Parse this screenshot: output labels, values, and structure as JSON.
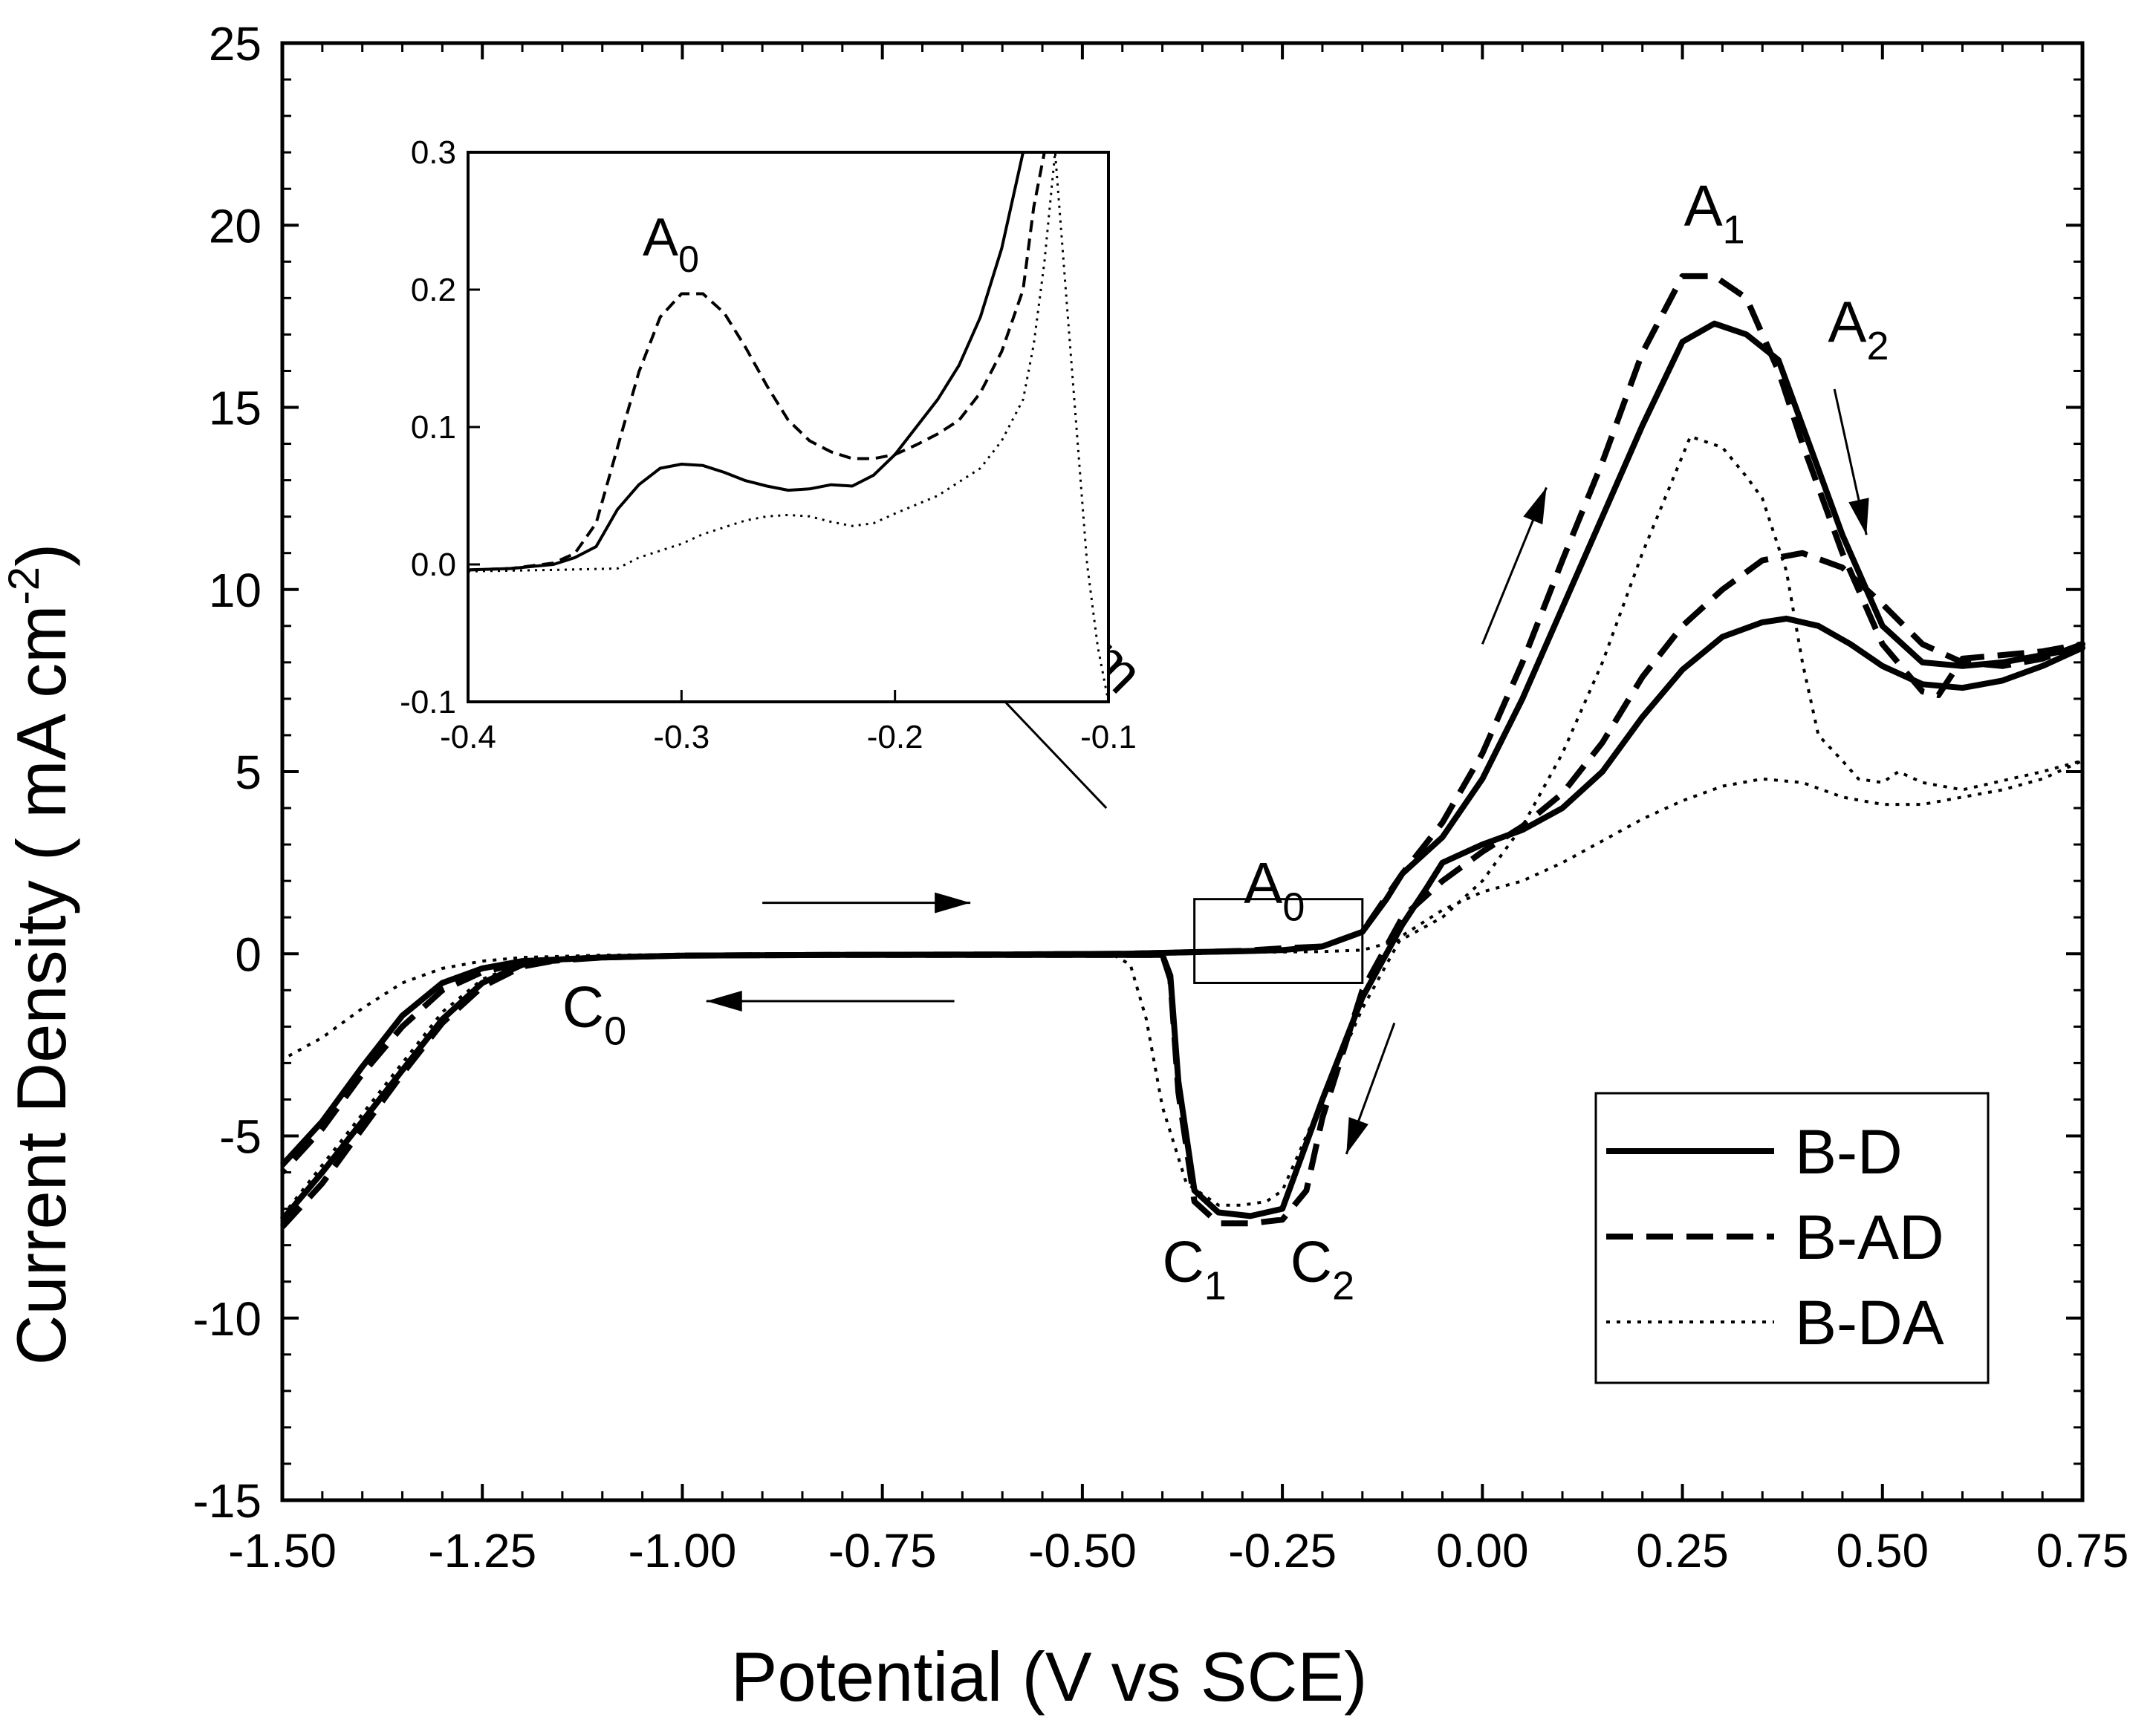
{
  "chart_data": [
    {
      "type": "line",
      "xlabel": "Potential (V vs SCE)",
      "ylabel": "Current Density ( mA cm",
      "ylabel_sup": "-2",
      "ylabel_tail": ")",
      "xlim": [
        -1.5,
        0.75
      ],
      "ylim": [
        -15,
        25
      ],
      "xticks": [
        -1.5,
        -1.25,
        -1.0,
        -0.75,
        -0.5,
        -0.25,
        0.0,
        0.25,
        0.5,
        0.75
      ],
      "xtick_labels": [
        "-1.50",
        "-1.25",
        "-1.00",
        "-0.75",
        "-0.50",
        "-0.25",
        "0.00",
        "0.25",
        "0.50",
        "0.75"
      ],
      "yticks": [
        -15,
        -10,
        -5,
        0,
        5,
        10,
        15,
        20,
        25
      ],
      "ytick_labels": [
        "-15",
        "-10",
        "-5",
        "0",
        "5",
        "10",
        "15",
        "20",
        "25"
      ],
      "legend": {
        "position": "bottom-right",
        "entries": [
          "B-D",
          "B-AD",
          "B-DA"
        ]
      },
      "series": [
        {
          "name": "B-D",
          "style": "solid",
          "x": [
            -1.5,
            -1.45,
            -1.4,
            -1.35,
            -1.3,
            -1.25,
            -1.2,
            -1.15,
            -1.1,
            -1.0,
            -0.8,
            -0.6,
            -0.45,
            -0.43,
            -0.4,
            -0.39,
            -0.38,
            -0.36,
            -0.33,
            -0.29,
            -0.25,
            -0.2,
            -0.15,
            -0.1,
            -0.07,
            -0.05,
            0.0,
            0.05,
            0.1,
            0.15,
            0.2,
            0.25,
            0.3,
            0.35,
            0.38,
            0.42,
            0.46,
            0.5,
            0.55,
            0.6,
            0.65,
            0.7,
            0.75,
            0.7,
            0.65,
            0.6,
            0.55,
            0.5,
            0.45,
            0.4,
            0.37,
            0.33,
            0.29,
            0.25,
            0.2,
            0.15,
            0.1,
            0.05,
            0.0,
            -0.05,
            -0.1,
            -0.12,
            -0.15,
            -0.2,
            -0.25,
            -0.3,
            -0.35,
            -0.45,
            -0.6,
            -0.8,
            -1.0,
            -1.1,
            -1.2,
            -1.25,
            -1.3,
            -1.35,
            -1.4,
            -1.45,
            -1.5
          ],
          "y": [
            -7.3,
            -6.0,
            -4.6,
            -3.2,
            -1.8,
            -0.8,
            -0.3,
            -0.15,
            -0.1,
            -0.05,
            -0.03,
            -0.03,
            -0.03,
            -0.03,
            -0.03,
            -0.6,
            -3.5,
            -6.5,
            -7.1,
            -7.2,
            -7.0,
            -4.0,
            -1.2,
            0.8,
            1.8,
            2.5,
            3.0,
            3.4,
            4.0,
            5.0,
            6.5,
            7.8,
            8.7,
            9.1,
            9.2,
            9.0,
            8.5,
            7.9,
            7.4,
            7.3,
            7.5,
            7.9,
            8.4,
            8.2,
            8.0,
            7.9,
            8.0,
            9.0,
            11.5,
            14.5,
            16.3,
            17.0,
            17.3,
            16.8,
            14.5,
            12.0,
            9.5,
            7.0,
            4.8,
            3.2,
            2.2,
            1.5,
            0.6,
            0.2,
            0.1,
            0.07,
            0.05,
            0.0,
            -0.02,
            -0.03,
            -0.05,
            -0.1,
            -0.2,
            -0.4,
            -0.8,
            -1.7,
            -3.1,
            -4.6,
            -5.8
          ]
        },
        {
          "name": "B-AD",
          "style": "dashed",
          "x": [
            -1.5,
            -1.45,
            -1.4,
            -1.35,
            -1.3,
            -1.25,
            -1.2,
            -1.15,
            -1.1,
            -1.0,
            -0.8,
            -0.6,
            -0.45,
            -0.43,
            -0.4,
            -0.39,
            -0.38,
            -0.36,
            -0.33,
            -0.29,
            -0.25,
            -0.22,
            -0.2,
            -0.15,
            -0.1,
            -0.05,
            0.0,
            0.05,
            0.1,
            0.15,
            0.2,
            0.25,
            0.3,
            0.35,
            0.4,
            0.45,
            0.5,
            0.55,
            0.6,
            0.65,
            0.7,
            0.75,
            0.7,
            0.6,
            0.57,
            0.55,
            0.5,
            0.45,
            0.4,
            0.37,
            0.33,
            0.29,
            0.25,
            0.2,
            0.15,
            0.1,
            0.05,
            0.0,
            -0.05,
            -0.1,
            -0.15,
            -0.2,
            -0.25,
            -0.3,
            -0.35,
            -0.45,
            -0.6,
            -0.8,
            -1.0,
            -1.1,
            -1.2,
            -1.25,
            -1.3,
            -1.35,
            -1.4,
            -1.45,
            -1.5
          ],
          "y": [
            -7.5,
            -6.3,
            -4.8,
            -3.3,
            -1.9,
            -0.9,
            -0.35,
            -0.15,
            -0.1,
            -0.05,
            -0.03,
            -0.03,
            -0.03,
            -0.03,
            -0.03,
            -0.7,
            -3.8,
            -6.8,
            -7.4,
            -7.4,
            -7.3,
            -6.5,
            -4.5,
            -1.0,
            1.0,
            2.0,
            2.8,
            3.5,
            4.4,
            5.8,
            7.6,
            9.0,
            10.0,
            10.8,
            11.0,
            10.6,
            9.6,
            8.5,
            8.0,
            7.9,
            8.1,
            8.5,
            8.3,
            8.1,
            7.1,
            7.2,
            8.5,
            11.0,
            14.0,
            16.0,
            18.0,
            18.6,
            18.6,
            16.5,
            13.5,
            10.8,
            8.0,
            5.5,
            3.6,
            2.2,
            0.6,
            0.2,
            0.15,
            0.08,
            0.05,
            0.0,
            -0.02,
            -0.03,
            -0.05,
            -0.1,
            -0.25,
            -0.5,
            -1.0,
            -2.0,
            -3.3,
            -4.8,
            -6.0
          ]
        },
        {
          "name": "B-DA",
          "style": "dotted",
          "x": [
            -1.5,
            -1.45,
            -1.4,
            -1.35,
            -1.3,
            -1.25,
            -1.2,
            -1.15,
            -1.1,
            -1.0,
            -0.8,
            -0.6,
            -0.5,
            -0.46,
            -0.44,
            -0.42,
            -0.4,
            -0.37,
            -0.33,
            -0.3,
            -0.27,
            -0.25,
            -0.2,
            -0.15,
            -0.1,
            -0.05,
            0.0,
            0.05,
            0.1,
            0.15,
            0.2,
            0.25,
            0.3,
            0.35,
            0.4,
            0.45,
            0.5,
            0.55,
            0.6,
            0.65,
            0.7,
            0.75,
            0.7,
            0.6,
            0.55,
            0.52,
            0.5,
            0.47,
            0.45,
            0.42,
            0.4,
            0.38,
            0.35,
            0.33,
            0.3,
            0.26,
            0.2,
            0.15,
            0.1,
            0.05,
            0.0,
            -0.05,
            -0.1,
            -0.15,
            -0.2,
            -0.3,
            -0.45,
            -0.6,
            -0.8,
            -1.0,
            -1.1,
            -1.2,
            -1.25,
            -1.3,
            -1.35,
            -1.4,
            -1.45,
            -1.5
          ],
          "y": [
            -7.2,
            -5.8,
            -4.4,
            -3.0,
            -1.6,
            -0.7,
            -0.25,
            -0.12,
            -0.08,
            -0.05,
            -0.03,
            -0.03,
            -0.03,
            -0.05,
            -0.3,
            -1.8,
            -4.2,
            -6.3,
            -6.9,
            -6.9,
            -6.8,
            -6.5,
            -4.0,
            -1.5,
            0.5,
            1.2,
            1.7,
            2.0,
            2.5,
            3.1,
            3.7,
            4.2,
            4.6,
            4.8,
            4.7,
            4.3,
            4.1,
            4.1,
            4.3,
            4.5,
            4.8,
            5.3,
            5.0,
            4.5,
            4.7,
            5.0,
            4.7,
            4.8,
            5.3,
            6.0,
            8.0,
            10.5,
            12.5,
            13.1,
            13.9,
            14.2,
            11.0,
            8.0,
            5.5,
            3.5,
            2.0,
            1.0,
            0.4,
            0.1,
            0.06,
            0.04,
            0.02,
            0.0,
            -0.01,
            -0.02,
            -0.04,
            -0.1,
            -0.2,
            -0.4,
            -0.8,
            -1.5,
            -2.3,
            -2.9
          ]
        }
      ],
      "annotations": [
        {
          "base": "A",
          "sub": "1",
          "x": 0.29,
          "y": 20.0
        },
        {
          "base": "A",
          "sub": "2",
          "x": 0.47,
          "y": 16.8
        },
        {
          "base": "A",
          "sub": "0",
          "x": -0.26,
          "y": 1.4
        },
        {
          "base": "C",
          "sub": "0",
          "x": -1.11,
          "y": -2.0
        },
        {
          "base": "C",
          "sub": "1",
          "x": -0.36,
          "y": -9.0
        },
        {
          "base": "C",
          "sub": "2",
          "x": -0.2,
          "y": -9.0
        },
        {
          "text": "Zoom",
          "x": -0.52,
          "y": 8.5
        }
      ]
    },
    {
      "type": "line",
      "title": "inset",
      "xlim": [
        -0.4,
        -0.1
      ],
      "ylim": [
        -0.1,
        0.3
      ],
      "xticks": [
        -0.4,
        -0.3,
        -0.2,
        -0.1
      ],
      "xtick_labels": [
        "-0.4",
        "-0.3",
        "-0.2",
        "-0.1"
      ],
      "yticks": [
        -0.1,
        0.0,
        0.1,
        0.2,
        0.3
      ],
      "ytick_labels": [
        "-0.1",
        "0.0",
        "0.1",
        "0.2",
        "0.3"
      ],
      "series": [
        {
          "name": "B-D",
          "style": "solid",
          "x": [
            -0.4,
            -0.38,
            -0.36,
            -0.35,
            -0.34,
            -0.33,
            -0.32,
            -0.31,
            -0.3,
            -0.29,
            -0.28,
            -0.27,
            -0.26,
            -0.25,
            -0.24,
            -0.23,
            -0.22,
            -0.21,
            -0.2,
            -0.19,
            -0.18,
            -0.17,
            -0.16,
            -0.15,
            -0.145,
            -0.14
          ],
          "y": [
            -0.004,
            -0.003,
            0.0,
            0.005,
            0.013,
            0.04,
            0.058,
            0.07,
            0.073,
            0.072,
            0.067,
            0.061,
            0.057,
            0.054,
            0.055,
            0.058,
            0.057,
            0.065,
            0.08,
            0.1,
            0.12,
            0.145,
            0.18,
            0.23,
            0.265,
            0.3
          ]
        },
        {
          "name": "B-AD",
          "style": "dashed",
          "x": [
            -0.4,
            -0.38,
            -0.36,
            -0.35,
            -0.34,
            -0.33,
            -0.32,
            -0.31,
            -0.3,
            -0.29,
            -0.28,
            -0.27,
            -0.26,
            -0.25,
            -0.24,
            -0.23,
            -0.22,
            -0.21,
            -0.2,
            -0.19,
            -0.18,
            -0.17,
            -0.16,
            -0.15,
            -0.14,
            -0.135,
            -0.13
          ],
          "y": [
            -0.004,
            -0.003,
            0.001,
            0.008,
            0.03,
            0.085,
            0.14,
            0.18,
            0.197,
            0.197,
            0.183,
            0.158,
            0.13,
            0.105,
            0.09,
            0.082,
            0.077,
            0.077,
            0.08,
            0.087,
            0.095,
            0.105,
            0.125,
            0.155,
            0.2,
            0.26,
            0.3
          ]
        },
        {
          "name": "B-DA",
          "style": "dotted",
          "x": [
            -0.4,
            -0.36,
            -0.33,
            -0.32,
            -0.3,
            -0.29,
            -0.28,
            -0.27,
            -0.26,
            -0.25,
            -0.24,
            -0.23,
            -0.22,
            -0.21,
            -0.2,
            -0.18,
            -0.16,
            -0.15,
            -0.14,
            -0.135,
            -0.13,
            -0.125,
            -0.12,
            -0.115,
            -0.11,
            -0.105,
            -0.1
          ],
          "y": [
            -0.005,
            -0.004,
            -0.003,
            0.005,
            0.015,
            0.022,
            0.027,
            0.032,
            0.035,
            0.036,
            0.035,
            0.031,
            0.028,
            0.03,
            0.037,
            0.05,
            0.07,
            0.09,
            0.12,
            0.16,
            0.22,
            0.3,
            0.2,
            0.1,
            0.0,
            -0.06,
            -0.1
          ]
        }
      ],
      "annotations": [
        {
          "base": "A",
          "sub": "0",
          "x": -0.305,
          "y": 0.225
        }
      ]
    }
  ]
}
